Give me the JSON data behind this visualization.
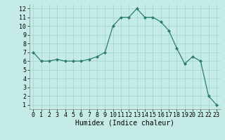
{
  "x": [
    0,
    1,
    2,
    3,
    4,
    5,
    6,
    7,
    8,
    9,
    10,
    11,
    12,
    13,
    14,
    15,
    16,
    17,
    18,
    19,
    20,
    21,
    22,
    23
  ],
  "y": [
    7,
    6,
    6,
    6.2,
    6,
    6,
    6,
    6.2,
    6.5,
    7,
    10,
    11,
    11,
    12,
    11,
    11,
    10.5,
    9.5,
    7.5,
    5.7,
    6.5,
    6,
    2,
    1
  ],
  "line_color": "#2d7d6c",
  "marker_color": "#2d7d6c",
  "bg_color": "#c5ebe6",
  "grid_color": "#9fd4ce",
  "xlabel": "Humidex (Indice chaleur)",
  "xlabel_fontsize": 7,
  "tick_fontsize": 6,
  "ylim": [
    0.5,
    12.5
  ],
  "xlim": [
    -0.5,
    23.5
  ],
  "yticks": [
    1,
    2,
    3,
    4,
    5,
    6,
    7,
    8,
    9,
    10,
    11,
    12
  ],
  "xticks": [
    0,
    1,
    2,
    3,
    4,
    5,
    6,
    7,
    8,
    9,
    10,
    11,
    12,
    13,
    14,
    15,
    16,
    17,
    18,
    19,
    20,
    21,
    22,
    23
  ]
}
